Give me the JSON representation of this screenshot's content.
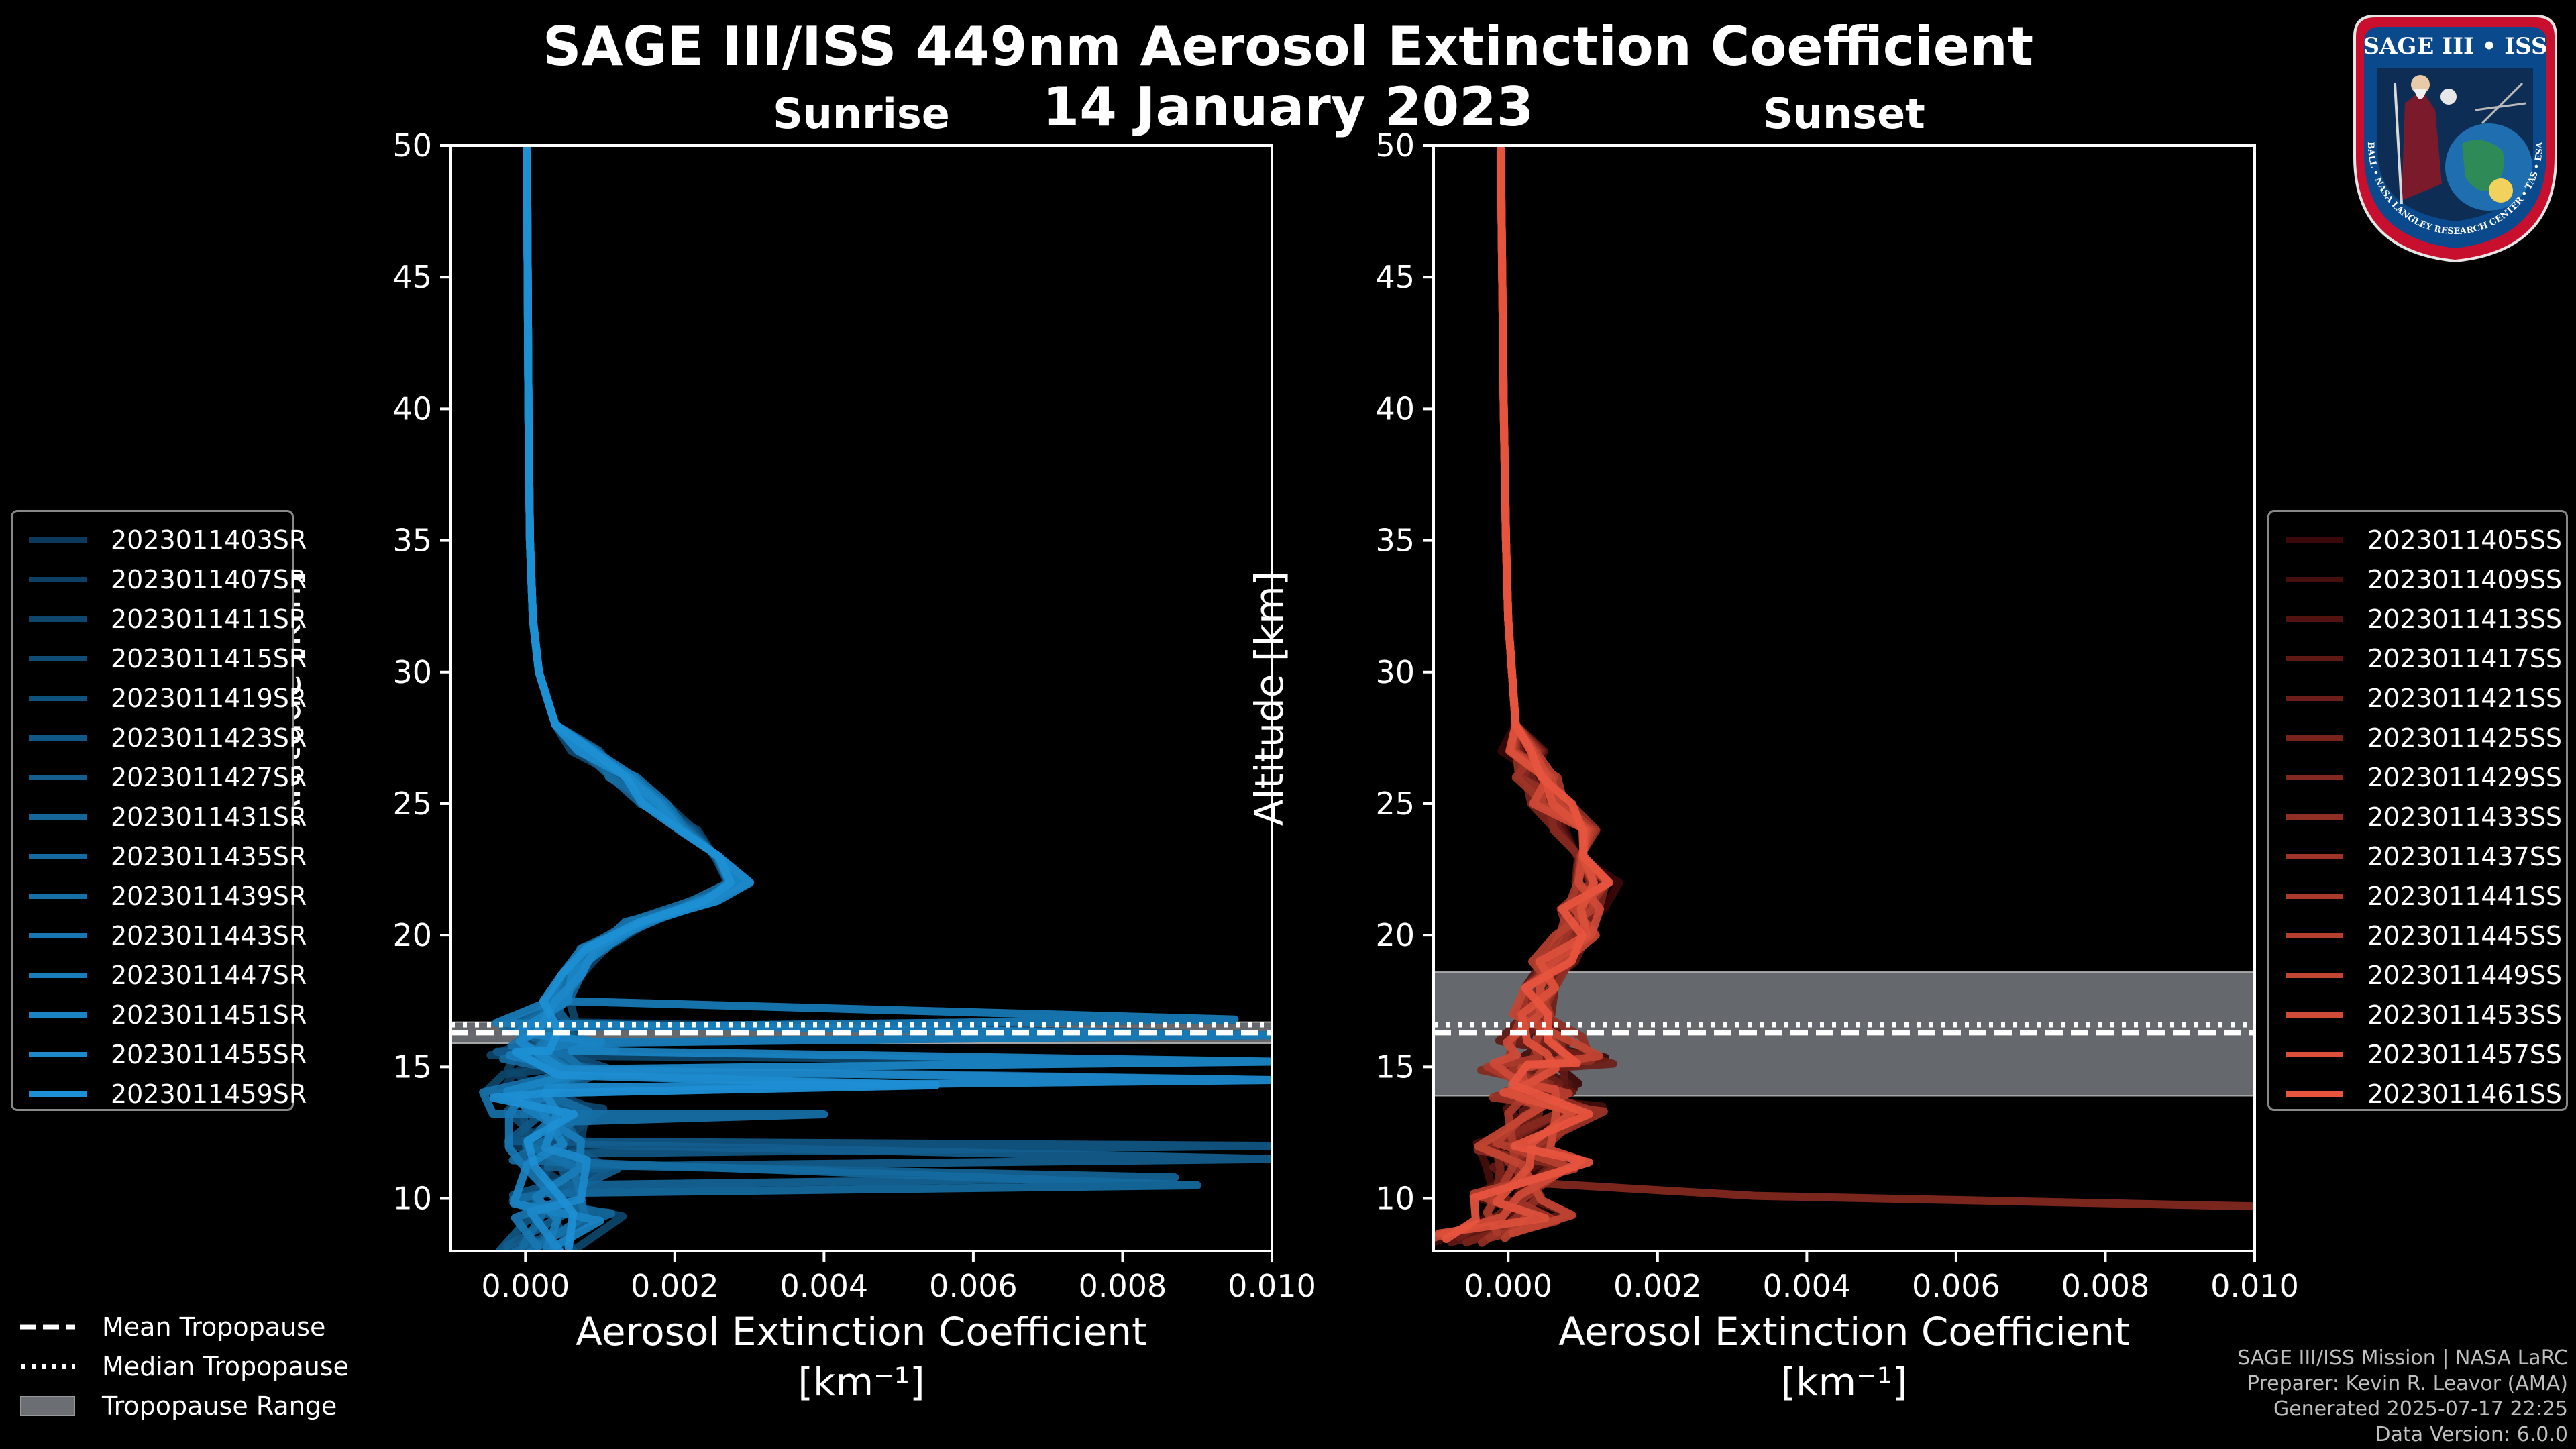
{
  "title_line1": "SAGE III/ISS 449nm Aerosol Extinction Coefficient",
  "title_line2": "14 January 2023",
  "logo": {
    "text": "SAGE III • ISS",
    "ring_text": "BALL • NASA LANGLEY RESEARCH CENTER • TAS • ESA"
  },
  "chart_data": [
    {
      "type": "line",
      "title": "Sunrise",
      "xlabel": "Aerosol Extinction Coefficient",
      "xlabel_units": "[km⁻¹]",
      "ylabel": "Altitude [km]",
      "xlim": [
        -0.001,
        0.01
      ],
      "ylim": [
        8,
        50
      ],
      "xticks": [
        0.0,
        0.002,
        0.004,
        0.006,
        0.008,
        0.01
      ],
      "xtick_labels": [
        "0.000",
        "0.002",
        "0.004",
        "0.006",
        "0.008",
        "0.010"
      ],
      "yticks": [
        10,
        15,
        20,
        25,
        30,
        35,
        40,
        45,
        50
      ],
      "tropopause": {
        "mean": 16.3,
        "median": 16.6,
        "range": [
          15.9,
          16.7
        ]
      },
      "series_color_dark": "#0b3a5c",
      "series_color_light": "#1d8fd4",
      "base_profile": [
        {
          "alt": 50,
          "ext": 2e-05
        },
        {
          "alt": 45,
          "ext": 3e-05
        },
        {
          "alt": 40,
          "ext": 4e-05
        },
        {
          "alt": 35,
          "ext": 6e-05
        },
        {
          "alt": 32,
          "ext": 0.0001
        },
        {
          "alt": 30,
          "ext": 0.00018
        },
        {
          "alt": 28,
          "ext": 0.0004
        },
        {
          "alt": 27,
          "ext": 0.0008
        },
        {
          "alt": 26,
          "ext": 0.0013
        },
        {
          "alt": 25,
          "ext": 0.0017
        },
        {
          "alt": 24,
          "ext": 0.0022
        },
        {
          "alt": 23,
          "ext": 0.0027
        },
        {
          "alt": 22,
          "ext": 0.0029
        },
        {
          "alt": 21.3,
          "ext": 0.0024
        },
        {
          "alt": 20.5,
          "ext": 0.0015
        },
        {
          "alt": 19.5,
          "ext": 0.0009
        },
        {
          "alt": 18.5,
          "ext": 0.0006
        },
        {
          "alt": 17.5,
          "ext": 0.0004
        },
        {
          "alt": 16.5,
          "ext": 0.0002
        },
        {
          "alt": 15.5,
          "ext": 0.0001
        },
        {
          "alt": 14,
          "ext": 0.0
        },
        {
          "alt": 12,
          "ext": 0.0002
        },
        {
          "alt": 10,
          "ext": 0.0003
        },
        {
          "alt": 8,
          "ext": 0.0001
        }
      ],
      "spikes": [
        {
          "alt": 16.8,
          "ext": 0.0095
        },
        {
          "alt": 16.2,
          "ext": 0.01
        },
        {
          "alt": 15.2,
          "ext": 0.01
        },
        {
          "alt": 14.5,
          "ext": 0.01
        },
        {
          "alt": 14.3,
          "ext": 0.0055
        },
        {
          "alt": 12.0,
          "ext": 0.01
        },
        {
          "alt": 11.5,
          "ext": 0.01
        },
        {
          "alt": 10.8,
          "ext": 0.0087
        },
        {
          "alt": 10.5,
          "ext": 0.009
        },
        {
          "alt": 13.2,
          "ext": 0.004
        }
      ],
      "series": [
        {
          "name": "2023011403SR"
        },
        {
          "name": "2023011407SR"
        },
        {
          "name": "2023011411SR"
        },
        {
          "name": "2023011415SR"
        },
        {
          "name": "2023011419SR"
        },
        {
          "name": "2023011423SR"
        },
        {
          "name": "2023011427SR"
        },
        {
          "name": "2023011431SR"
        },
        {
          "name": "2023011435SR"
        },
        {
          "name": "2023011439SR"
        },
        {
          "name": "2023011443SR"
        },
        {
          "name": "2023011447SR"
        },
        {
          "name": "2023011451SR"
        },
        {
          "name": "2023011455SR"
        },
        {
          "name": "2023011459SR"
        }
      ]
    },
    {
      "type": "line",
      "title": "Sunset",
      "xlabel": "Aerosol Extinction Coefficient",
      "xlabel_units": "[km⁻¹]",
      "ylabel": "Altitude [km]",
      "xlim": [
        -0.001,
        0.01
      ],
      "ylim": [
        8,
        50
      ],
      "xticks": [
        0.0,
        0.002,
        0.004,
        0.006,
        0.008,
        0.01
      ],
      "xtick_labels": [
        "0.000",
        "0.002",
        "0.004",
        "0.006",
        "0.008",
        "0.010"
      ],
      "yticks": [
        10,
        15,
        20,
        25,
        30,
        35,
        40,
        45,
        50
      ],
      "tropopause": {
        "mean": 16.3,
        "median": 16.6,
        "range": [
          13.9,
          18.6
        ]
      },
      "series_color_dark": "#3a0808",
      "series_color_light": "#e8553f",
      "base_profile": [
        {
          "alt": 50,
          "ext": -0.0001
        },
        {
          "alt": 45,
          "ext": -8e-05
        },
        {
          "alt": 40,
          "ext": -6e-05
        },
        {
          "alt": 35,
          "ext": -3e-05
        },
        {
          "alt": 32,
          "ext": 0.0
        },
        {
          "alt": 30,
          "ext": 5e-05
        },
        {
          "alt": 28,
          "ext": 0.0001
        },
        {
          "alt": 27,
          "ext": 0.0002
        },
        {
          "alt": 26,
          "ext": 0.0004
        },
        {
          "alt": 25,
          "ext": 0.0006
        },
        {
          "alt": 24,
          "ext": 0.0009
        },
        {
          "alt": 23,
          "ext": 0.0011
        },
        {
          "alt": 22,
          "ext": 0.0012
        },
        {
          "alt": 21,
          "ext": 0.001
        },
        {
          "alt": 20,
          "ext": 0.0009
        },
        {
          "alt": 19,
          "ext": 0.0006
        },
        {
          "alt": 18,
          "ext": 0.0004
        },
        {
          "alt": 17,
          "ext": 0.0003
        },
        {
          "alt": 16,
          "ext": 0.0004
        },
        {
          "alt": 15,
          "ext": 0.0002
        },
        {
          "alt": 14,
          "ext": 0.0003
        },
        {
          "alt": 12,
          "ext": 0.0001
        },
        {
          "alt": 10,
          "ext": 0.0
        },
        {
          "alt": 8.5,
          "ext": -0.0005
        }
      ],
      "spikes": [],
      "outlier": [
        {
          "alt": 10.6,
          "ext": 0.0003
        },
        {
          "alt": 10.1,
          "ext": 0.0033
        },
        {
          "alt": 9.7,
          "ext": 0.01
        }
      ],
      "series": [
        {
          "name": "2023011405SS"
        },
        {
          "name": "2023011409SS"
        },
        {
          "name": "2023011413SS"
        },
        {
          "name": "2023011417SS"
        },
        {
          "name": "2023011421SS"
        },
        {
          "name": "2023011425SS"
        },
        {
          "name": "2023011429SS"
        },
        {
          "name": "2023011433SS"
        },
        {
          "name": "2023011437SS"
        },
        {
          "name": "2023011441SS"
        },
        {
          "name": "2023011445SS"
        },
        {
          "name": "2023011449SS"
        },
        {
          "name": "2023011453SS"
        },
        {
          "name": "2023011457SS"
        },
        {
          "name": "2023011461SS"
        }
      ]
    }
  ],
  "bottom_legend": {
    "mean": "Mean Tropopause",
    "median": "Median Tropopause",
    "range": "Tropopause Range"
  },
  "footer": {
    "line1": "SAGE III/ISS Mission | NASA LaRC",
    "line2": "Preparer: Kevin R. Leavor (AMA)",
    "line3": "Generated 2025-07-17 22:25",
    "line4": "Data Version: 6.0.0"
  }
}
